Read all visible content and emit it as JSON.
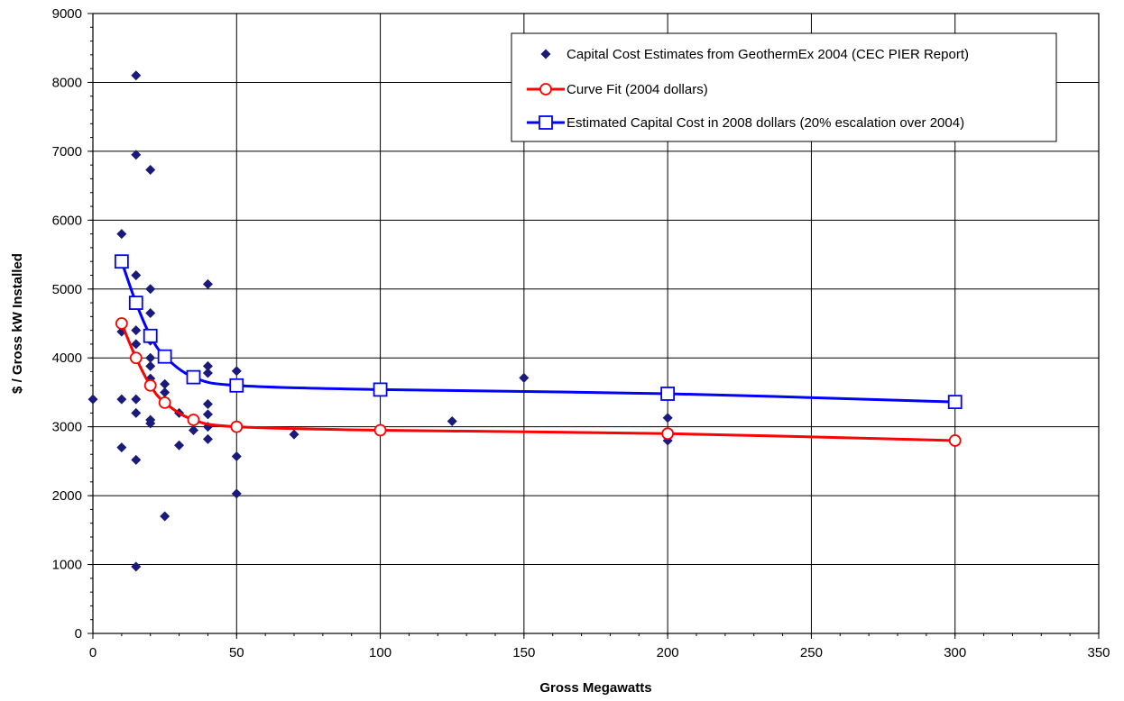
{
  "chart_data": {
    "type": "scatter",
    "xlabel": "Gross Megawatts",
    "ylabel": "$ / Gross kW Installed",
    "xlim": [
      0,
      350
    ],
    "ylim": [
      0,
      9000
    ],
    "x_ticks": [
      "0",
      "50",
      "100",
      "150",
      "200",
      "250",
      "300",
      "350"
    ],
    "y_ticks": [
      "0",
      "1000",
      "2000",
      "3000",
      "4000",
      "5000",
      "6000",
      "7000",
      "8000",
      "9000"
    ],
    "grid": "on",
    "legend_position": "top-right",
    "series": [
      {
        "name": "Capital Cost Estimates from GeothermEx 2004 (CEC PIER Report)",
        "kind": "scatter",
        "marker": "diamond",
        "color": "#1a1a7a",
        "points": [
          [
            0,
            3400
          ],
          [
            10,
            5800
          ],
          [
            10,
            4380
          ],
          [
            10,
            3400
          ],
          [
            10,
            2700
          ],
          [
            15,
            8100
          ],
          [
            15,
            6950
          ],
          [
            15,
            5200
          ],
          [
            15,
            4400
          ],
          [
            15,
            4200
          ],
          [
            15,
            3400
          ],
          [
            15,
            3200
          ],
          [
            15,
            2520
          ],
          [
            15,
            970
          ],
          [
            20,
            6730
          ],
          [
            20,
            5000
          ],
          [
            20,
            4650
          ],
          [
            20,
            4250
          ],
          [
            20,
            4000
          ],
          [
            20,
            3880
          ],
          [
            20,
            3700
          ],
          [
            20,
            3100
          ],
          [
            20,
            3050
          ],
          [
            25,
            3620
          ],
          [
            25,
            3500
          ],
          [
            25,
            1700
          ],
          [
            30,
            3200
          ],
          [
            30,
            2730
          ],
          [
            35,
            2950
          ],
          [
            40,
            5070
          ],
          [
            40,
            3880
          ],
          [
            40,
            3780
          ],
          [
            40,
            3330
          ],
          [
            40,
            3180
          ],
          [
            40,
            3000
          ],
          [
            40,
            2820
          ],
          [
            50,
            3810
          ],
          [
            50,
            2570
          ],
          [
            50,
            2030
          ],
          [
            70,
            2890
          ],
          [
            125,
            3080
          ],
          [
            150,
            3710
          ],
          [
            200,
            3130
          ],
          [
            200,
            2800
          ],
          [
            300,
            2820
          ]
        ]
      },
      {
        "name": "Curve Fit (2004 dollars)",
        "kind": "line",
        "marker": "circle",
        "color": "#ff0000",
        "points": [
          [
            10,
            4500
          ],
          [
            15,
            4000
          ],
          [
            20,
            3600
          ],
          [
            25,
            3350
          ],
          [
            35,
            3100
          ],
          [
            50,
            3000
          ],
          [
            100,
            2950
          ],
          [
            200,
            2900
          ],
          [
            300,
            2800
          ]
        ]
      },
      {
        "name": "Estimated Capital Cost in 2008 dollars (20% escalation over 2004)",
        "kind": "line",
        "marker": "square",
        "color": "#0000ff",
        "points": [
          [
            10,
            5400
          ],
          [
            15,
            4800
          ],
          [
            20,
            4320
          ],
          [
            25,
            4020
          ],
          [
            35,
            3720
          ],
          [
            50,
            3600
          ],
          [
            100,
            3540
          ],
          [
            200,
            3480
          ],
          [
            300,
            3360
          ]
        ]
      }
    ]
  }
}
